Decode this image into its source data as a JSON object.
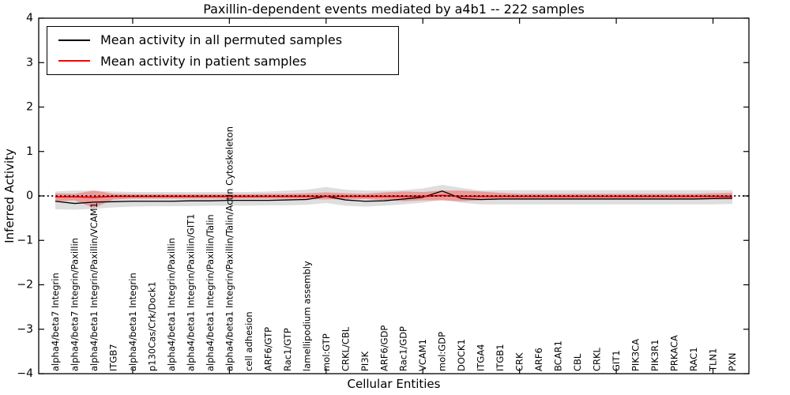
{
  "chart_data": {
    "type": "line",
    "title": "Paxillin-dependent events mediated by a4b1 -- 222 samples",
    "xlabel": "Cellular Entities",
    "ylabel": "Inferred Activity",
    "ylim": [
      -4,
      4
    ],
    "ytick_labels": [
      "4",
      "3",
      "2",
      "1",
      "0",
      "−1",
      "−2",
      "−3",
      "−4"
    ],
    "ytick_values": [
      4,
      3,
      2,
      1,
      0,
      -1,
      -2,
      -3,
      -4
    ],
    "xtick_positions": [
      5,
      10,
      15,
      20,
      25,
      30,
      35
    ],
    "grid": false,
    "legend_position": "upper left",
    "zero_line": {
      "value": 0,
      "style": "dotted",
      "color": "#000000"
    },
    "categories": [
      "alpha4/beta7 Integrin",
      "alpha4/beta7 Integrin/Paxillin",
      "alpha4/beta1 Integrin/Paxillin/VCAM1",
      "ITGB7",
      "alpha4/beta1 Integrin",
      "p130Cas/Crk/Dock1",
      "alpha4/beta1 Integrin/Paxillin",
      "alpha4/beta1 Integrin/Paxillin/GIT1",
      "alpha4/beta1 Integrin/Paxillin/Talin",
      "alpha4/beta1 Integrin/Paxillin/Talin/Actin Cytoskeleton",
      "cell adhesion",
      "ARF6/GTP",
      "Rac1/GTP",
      "lamellipodium assembly",
      "mol:GTP",
      "CRKL/CBL",
      "PI3K",
      "ARF6/GDP",
      "Rac1/GDP",
      "VCAM1",
      "mol:GDP",
      "DOCK1",
      "ITGA4",
      "ITGB1",
      "CRK",
      "ARF6",
      "BCAR1",
      "CBL",
      "CRKL",
      "GIT1",
      "PIK3CA",
      "PIK3R1",
      "PRKACA",
      "RAC1",
      "TLN1",
      "PXN"
    ],
    "series": [
      {
        "name": "Mean activity in all permuted samples",
        "color": "#000000",
        "line_width": 1.3,
        "band_color": "rgba(0,0,0,0.13)",
        "values": [
          -0.12,
          -0.17,
          -0.14,
          -0.13,
          -0.12,
          -0.12,
          -0.12,
          -0.11,
          -0.11,
          -0.1,
          -0.1,
          -0.1,
          -0.09,
          -0.08,
          -0.01,
          -0.09,
          -0.12,
          -0.11,
          -0.07,
          -0.03,
          0.11,
          -0.06,
          -0.08,
          -0.07,
          -0.07,
          -0.07,
          -0.07,
          -0.07,
          -0.07,
          -0.07,
          -0.07,
          -0.07,
          -0.07,
          -0.07,
          -0.06,
          -0.05
        ],
        "band_upper": [
          0.1,
          0.12,
          0.12,
          0.1,
          0.09,
          0.09,
          0.09,
          0.09,
          0.09,
          0.09,
          0.09,
          0.1,
          0.12,
          0.14,
          0.2,
          0.14,
          0.12,
          0.12,
          0.13,
          0.17,
          0.25,
          0.18,
          0.12,
          0.13,
          0.13,
          0.13,
          0.13,
          0.13,
          0.13,
          0.13,
          0.13,
          0.13,
          0.13,
          0.13,
          0.13,
          0.13
        ],
        "band_lower": [
          -0.3,
          -0.31,
          -0.29,
          -0.26,
          -0.24,
          -0.23,
          -0.23,
          -0.23,
          -0.22,
          -0.22,
          -0.22,
          -0.21,
          -0.21,
          -0.2,
          -0.16,
          -0.22,
          -0.24,
          -0.22,
          -0.19,
          -0.15,
          -0.09,
          -0.15,
          -0.19,
          -0.19,
          -0.19,
          -0.19,
          -0.19,
          -0.19,
          -0.19,
          -0.19,
          -0.19,
          -0.19,
          -0.19,
          -0.19,
          -0.19,
          -0.18
        ]
      },
      {
        "name": "Mean activity in patient samples",
        "color": "#ff0000",
        "line_width": 1.8,
        "band_color": "rgba(255,0,0,0.30)",
        "values": [
          -0.02,
          -0.02,
          -0.03,
          -0.01,
          -0.01,
          -0.01,
          -0.01,
          -0.01,
          -0.01,
          -0.01,
          -0.01,
          -0.01,
          -0.01,
          -0.01,
          -0.01,
          -0.01,
          -0.01,
          -0.01,
          -0.01,
          -0.01,
          0.01,
          -0.01,
          -0.01,
          -0.01,
          -0.01,
          -0.01,
          -0.01,
          -0.01,
          -0.01,
          -0.01,
          -0.01,
          -0.01,
          -0.01,
          -0.01,
          -0.01,
          -0.01
        ],
        "band_upper": [
          0.06,
          0.05,
          0.12,
          0.05,
          0.04,
          0.04,
          0.04,
          0.04,
          0.04,
          0.04,
          0.04,
          0.05,
          0.05,
          0.06,
          0.08,
          0.06,
          0.05,
          0.08,
          0.1,
          0.09,
          0.12,
          0.12,
          0.1,
          0.07,
          0.05,
          0.05,
          0.05,
          0.05,
          0.05,
          0.05,
          0.05,
          0.05,
          0.05,
          0.05,
          0.06,
          0.07
        ],
        "band_lower": [
          -0.13,
          -0.1,
          -0.27,
          -0.08,
          -0.06,
          -0.06,
          -0.06,
          -0.06,
          -0.06,
          -0.06,
          -0.06,
          -0.06,
          -0.06,
          -0.07,
          -0.08,
          -0.07,
          -0.07,
          -0.09,
          -0.12,
          -0.1,
          -0.1,
          -0.12,
          -0.1,
          -0.08,
          -0.07,
          -0.07,
          -0.07,
          -0.07,
          -0.07,
          -0.07,
          -0.07,
          -0.07,
          -0.07,
          -0.07,
          -0.08,
          -0.08
        ]
      }
    ]
  }
}
